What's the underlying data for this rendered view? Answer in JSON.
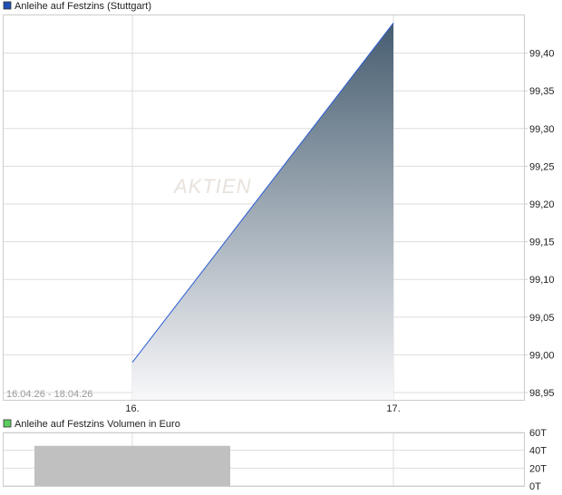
{
  "chart_data": [
    {
      "type": "area",
      "legend": "Anleihe auf Festzins (Stuttgart)",
      "legend_color": "#1f4fb4",
      "date_range": "16.04.26 - 18.04.26",
      "watermark": "AKTIEN",
      "x_ticks": [
        "16.",
        "17."
      ],
      "y_ticks": [
        "98,95",
        "99,00",
        "99,05",
        "99,10",
        "99,15",
        "99,20",
        "99,25",
        "99,30",
        "99,35",
        "99,40"
      ],
      "ylim": [
        98.95,
        99.45
      ],
      "x": [
        "16.",
        "17."
      ],
      "values": [
        98.99,
        99.44
      ],
      "line_color": "#2a5bd7",
      "fill_top_color": "#465d70",
      "grid": true
    },
    {
      "type": "bar",
      "legend": "Anleihe auf Festzins Volumen in Euro",
      "legend_color": "#5ccc5c",
      "y_ticks": [
        "0T",
        "20T",
        "40T",
        "60T"
      ],
      "ylim": [
        0,
        60
      ],
      "categories": [
        "16."
      ],
      "values": [
        45
      ],
      "bar_color": "#c0c0c0",
      "grid": true
    }
  ]
}
